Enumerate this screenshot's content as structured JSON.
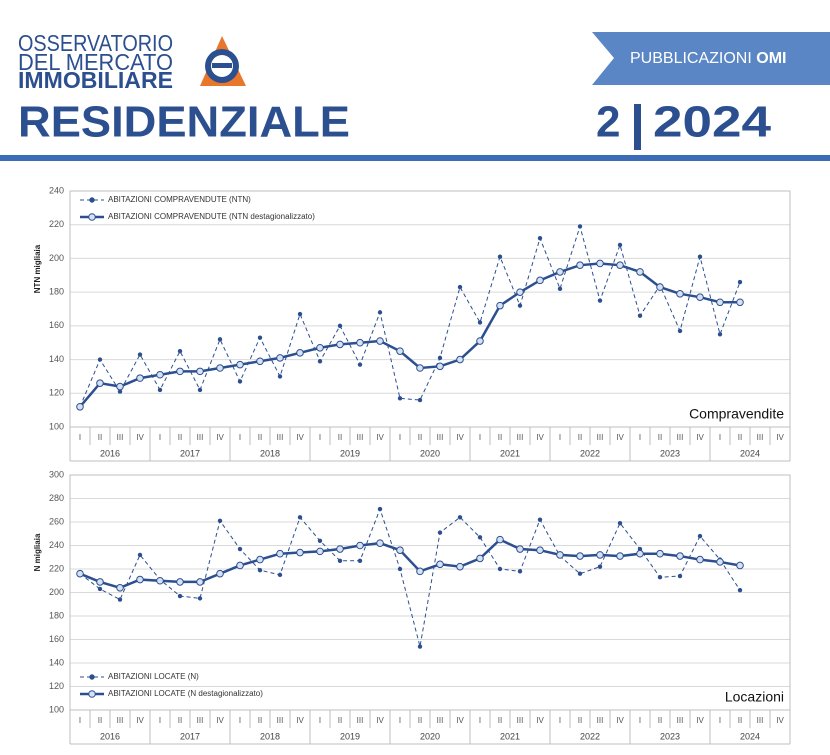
{
  "header": {
    "logo_lines": [
      "OSSERVATORIO",
      "DEL MERCATO",
      "IMMOBILIARE"
    ],
    "banner": "PUBBLICAZIONI",
    "banner_bold": "OMI",
    "title": "RESIDENZIALE",
    "issue": "2",
    "year": "2024"
  },
  "chart_data": [
    {
      "type": "line",
      "y_label": "NTN migliaia",
      "annotation": "Compravendite",
      "legend": "top-left",
      "grid": true,
      "categories": [
        "I",
        "II",
        "III",
        "IV",
        "I",
        "II",
        "III",
        "IV",
        "I",
        "II",
        "III",
        "IV",
        "I",
        "II",
        "III",
        "IV",
        "I",
        "II",
        "III",
        "IV",
        "I",
        "II",
        "III",
        "IV",
        "I",
        "II",
        "III",
        "IV",
        "I",
        "II",
        "III",
        "IV",
        "I",
        "II",
        "III",
        "IV"
      ],
      "years": [
        "2016",
        "2017",
        "2018",
        "2019",
        "2020",
        "2021",
        "2022",
        "2023",
        "2024"
      ],
      "ylim": [
        100,
        240
      ],
      "yticks": [
        100,
        120,
        140,
        160,
        180,
        200,
        220,
        240
      ],
      "series": [
        {
          "name": "ABITAZIONI COMPRAVENDUTE (NTN)",
          "color": "#2c4f8f",
          "dashed": true,
          "marker": "dot",
          "values": [
            112,
            140,
            121,
            143,
            122,
            145,
            122,
            152,
            127,
            153,
            130,
            167,
            139,
            160,
            137,
            168,
            117,
            116,
            141,
            183,
            162,
            201,
            172,
            212,
            182,
            219,
            175,
            208,
            166,
            184,
            157,
            201,
            155,
            186,
            null,
            null
          ]
        },
        {
          "name": "ABITAZIONI COMPRAVENDUTE (NTN destagionalizzato)",
          "color": "#2c4f8f",
          "dashed": false,
          "marker": "ring",
          "values": [
            112,
            126,
            124,
            129,
            131,
            133,
            133,
            135,
            137,
            139,
            141,
            144,
            147,
            149,
            150,
            151,
            145,
            135,
            136,
            140,
            151,
            172,
            180,
            187,
            192,
            196,
            197,
            196,
            192,
            183,
            179,
            177,
            174,
            174,
            null,
            null
          ]
        }
      ]
    },
    {
      "type": "line",
      "y_label": "N migliaia",
      "annotation": "Locazioni",
      "legend": "bottom-left",
      "grid": true,
      "categories": [
        "I",
        "II",
        "III",
        "IV",
        "I",
        "II",
        "III",
        "IV",
        "I",
        "II",
        "III",
        "IV",
        "I",
        "II",
        "III",
        "IV",
        "I",
        "II",
        "III",
        "IV",
        "I",
        "II",
        "III",
        "IV",
        "I",
        "II",
        "III",
        "IV",
        "I",
        "II",
        "III",
        "IV",
        "I",
        "II",
        "III",
        "IV"
      ],
      "years": [
        "2016",
        "2017",
        "2018",
        "2019",
        "2020",
        "2021",
        "2022",
        "2023",
        "2024"
      ],
      "ylim": [
        100,
        300
      ],
      "yticks": [
        100,
        120,
        140,
        160,
        180,
        200,
        220,
        240,
        260,
        280,
        300
      ],
      "series": [
        {
          "name": "ABITAZIONI LOCATE (N)",
          "color": "#2c4f8f",
          "dashed": true,
          "marker": "dot",
          "values": [
            216,
            203,
            194,
            232,
            211,
            197,
            195,
            261,
            237,
            219,
            215,
            264,
            244,
            227,
            227,
            271,
            220,
            154,
            251,
            264,
            247,
            220,
            218,
            262,
            231,
            216,
            222,
            259,
            237,
            213,
            214,
            248,
            228,
            202,
            null,
            null
          ]
        },
        {
          "name": "ABITAZIONI LOCATE (N destagionalizzato)",
          "color": "#2c4f8f",
          "dashed": false,
          "marker": "ring",
          "values": [
            216,
            209,
            204,
            211,
            210,
            209,
            209,
            216,
            223,
            228,
            233,
            234,
            235,
            237,
            240,
            242,
            236,
            218,
            224,
            222,
            229,
            245,
            237,
            236,
            232,
            231,
            232,
            231,
            233,
            233,
            231,
            228,
            226,
            223,
            null,
            null
          ]
        }
      ]
    }
  ]
}
